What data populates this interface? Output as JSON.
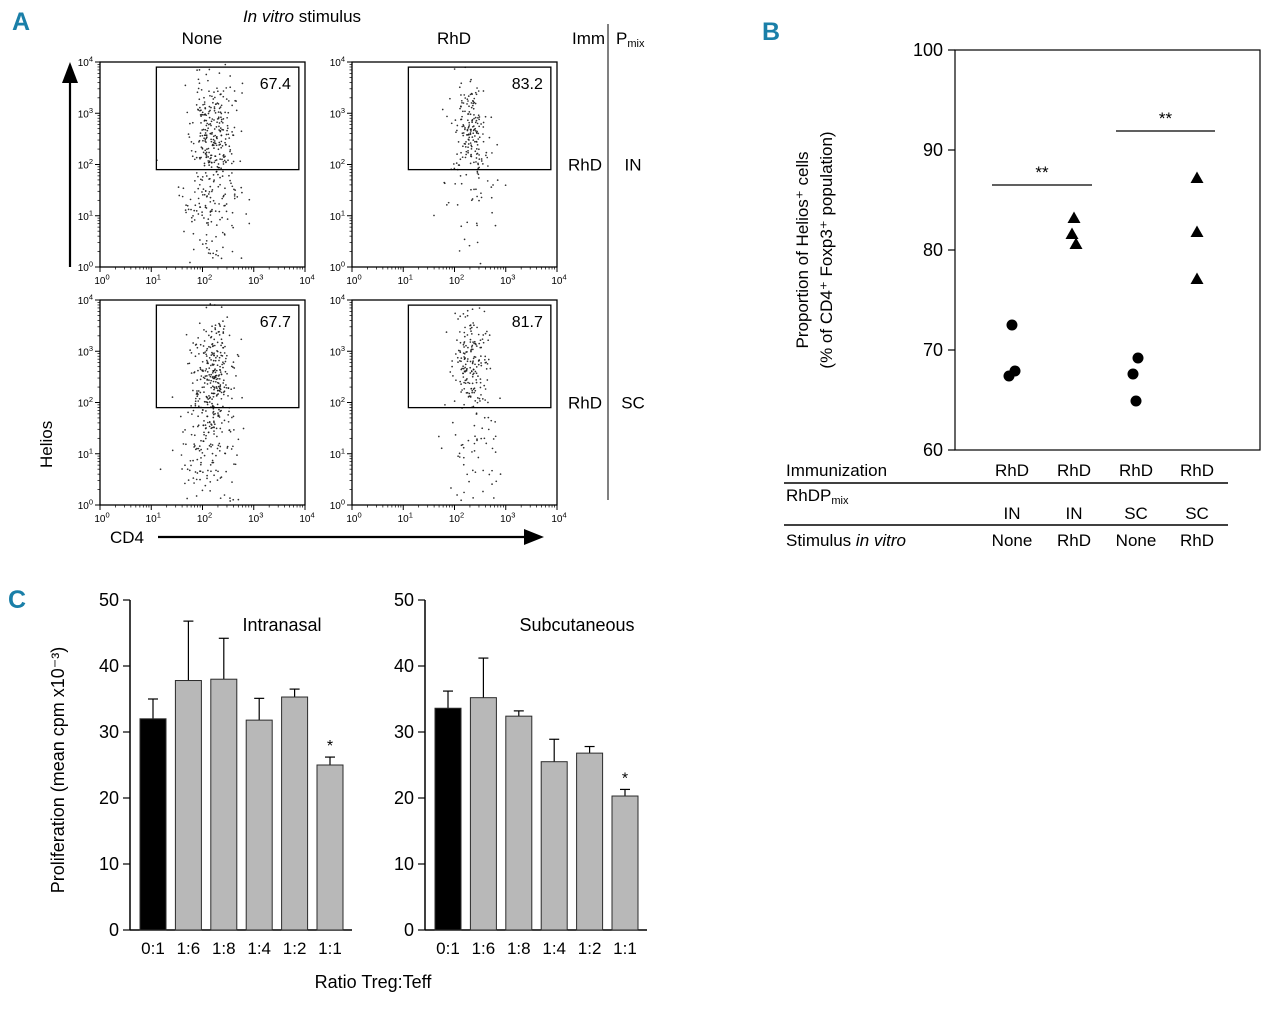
{
  "page": {
    "background": "#ffffff",
    "panel_label_color": "#1a7fa8"
  },
  "panel_labels": {
    "a": "A",
    "b": "B",
    "c": "C"
  },
  "chart_data": [
    {
      "type": "scatter",
      "id": "flow-cytometry",
      "title_italic": "In vitro",
      "title_rest": " stimulus",
      "xlabel": "CD4",
      "ylabel": "Helios",
      "scale": "log10",
      "axis_decades": [
        0,
        1,
        2,
        3,
        4
      ],
      "col_headers": [
        "None",
        "RhD"
      ],
      "right_header_imm": "Imm",
      "right_header_pmix_main": "P",
      "right_header_pmix_sub": "mix",
      "row_labels": [
        {
          "imm": "RhD",
          "route": "IN"
        },
        {
          "imm": "RhD",
          "route": "SC"
        }
      ],
      "gate": {
        "x0": 1.1,
        "x1": 3.88,
        "y0": 1.9,
        "y1": 3.9
      },
      "plots": [
        {
          "row": 0,
          "col": 0,
          "stimulus": "None",
          "route": "IN",
          "gate_pct": "67.4",
          "cluster": {
            "seed": 11,
            "n_main": 260,
            "cx": 2.2,
            "sx": 0.2,
            "cy": 2.6,
            "sy": 0.55,
            "n_tail": 150,
            "tx": 2.15,
            "tsx": 0.3,
            "ty": 1.15,
            "tsy": 0.65
          }
        },
        {
          "row": 0,
          "col": 1,
          "stimulus": "RhD",
          "route": "IN",
          "gate_pct": "83.2",
          "cluster": {
            "seed": 22,
            "n_main": 170,
            "cx": 2.3,
            "sx": 0.17,
            "cy": 2.78,
            "sy": 0.42,
            "n_tail": 50,
            "tx": 2.35,
            "tsx": 0.3,
            "ty": 1.3,
            "tsy": 0.6
          }
        },
        {
          "row": 1,
          "col": 0,
          "stimulus": "None",
          "route": "SC",
          "gate_pct": "67.7",
          "cluster": {
            "seed": 33,
            "n_main": 280,
            "cx": 2.2,
            "sx": 0.2,
            "cy": 2.55,
            "sy": 0.6,
            "n_tail": 160,
            "tx": 2.1,
            "tsx": 0.3,
            "ty": 1.1,
            "tsy": 0.65
          }
        },
        {
          "row": 1,
          "col": 1,
          "stimulus": "RhD",
          "route": "SC",
          "gate_pct": "81.7",
          "cluster": {
            "seed": 44,
            "n_main": 180,
            "cx": 2.3,
            "sx": 0.18,
            "cy": 2.72,
            "sy": 0.45,
            "n_tail": 60,
            "tx": 2.4,
            "tsx": 0.3,
            "ty": 1.25,
            "tsy": 0.6
          }
        }
      ]
    },
    {
      "type": "scatter",
      "id": "helios-proportion",
      "ylabel_lines": [
        "Proportion of Helios⁺ cells",
        "(% of CD4⁺ Foxp3⁺ population)"
      ],
      "ylim": [
        60,
        100
      ],
      "yticks": [
        60,
        70,
        80,
        90,
        100
      ],
      "groups": [
        {
          "marker": "circle",
          "immunization": "RhD",
          "route": "IN",
          "stimulus": "None",
          "values": [
            67.4,
            67.9,
            72.5
          ]
        },
        {
          "marker": "triangle",
          "immunization": "RhD",
          "route": "IN",
          "stimulus": "RhD",
          "values": [
            80.6,
            81.6,
            83.2
          ]
        },
        {
          "marker": "circle",
          "immunization": "RhD",
          "route": "SC",
          "stimulus": "None",
          "values": [
            64.9,
            67.6,
            69.2
          ]
        },
        {
          "marker": "triangle",
          "immunization": "RhD",
          "route": "SC",
          "stimulus": "RhD",
          "values": [
            77.1,
            81.8,
            87.2
          ]
        }
      ],
      "significance": [
        {
          "groups": [
            0,
            1
          ],
          "y": 86.5,
          "label": "**"
        },
        {
          "groups": [
            2,
            3
          ],
          "y": 91.9,
          "label": "**"
        }
      ],
      "table": {
        "rows": [
          {
            "label": "Immunization",
            "values": [
              "RhD",
              "RhD",
              "RhD",
              "RhD"
            ],
            "underline": true
          },
          {
            "label_main": "RhDP",
            "label_sub": "mix",
            "values": [
              "IN",
              "IN",
              "SC",
              "SC"
            ],
            "underline": true
          },
          {
            "label_plain": "Stimulus ",
            "label_italic": "in vitro",
            "values": [
              "None",
              "RhD",
              "None",
              "RhD"
            ],
            "underline": false
          }
        ]
      }
    },
    {
      "type": "bar",
      "id": "proliferation-intranasal",
      "title": "Intranasal",
      "ylabel": "Proliferation (mean cpm x10⁻³)",
      "xlabel": "Ratio Treg:Teff",
      "ylim": [
        0,
        50
      ],
      "yticks": [
        0,
        10,
        20,
        30,
        40,
        50
      ],
      "categories": [
        "0:1",
        "1:6",
        "1:8",
        "1:4",
        "1:2",
        "1:1"
      ],
      "values": [
        32.0,
        37.8,
        38.0,
        31.8,
        35.3,
        25.0
      ],
      "errors": [
        3.0,
        9.0,
        6.2,
        3.3,
        1.2,
        1.2
      ],
      "bar_colors": [
        "#000000",
        "#b8b8b8",
        "#b8b8b8",
        "#b8b8b8",
        "#b8b8b8",
        "#b8b8b8"
      ],
      "sig_label": "*",
      "sig_index": 5
    },
    {
      "type": "bar",
      "id": "proliferation-subcutaneous",
      "title": "Subcutaneous",
      "ylim": [
        0,
        50
      ],
      "yticks": [
        0,
        10,
        20,
        30,
        40,
        50
      ],
      "categories": [
        "0:1",
        "1:6",
        "1:8",
        "1:4",
        "1:2",
        "1:1"
      ],
      "values": [
        33.6,
        35.2,
        32.4,
        25.5,
        26.8,
        20.3
      ],
      "errors": [
        2.6,
        6.0,
        0.8,
        3.4,
        1.0,
        1.0
      ],
      "bar_colors": [
        "#000000",
        "#b8b8b8",
        "#b8b8b8",
        "#b8b8b8",
        "#b8b8b8",
        "#b8b8b8"
      ],
      "sig_label": "*",
      "sig_index": 5
    }
  ]
}
